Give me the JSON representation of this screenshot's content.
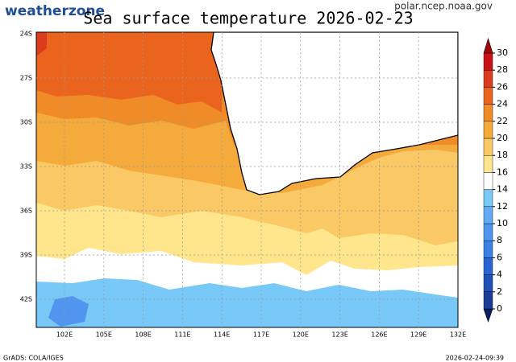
{
  "header": {
    "logo": "weatherzone",
    "title": "Sea surface temperature 2026-02-23",
    "source": "polar.ncep.noaa.gov"
  },
  "map": {
    "lat_labels": [
      "24S",
      "27S",
      "30S",
      "33S",
      "36S",
      "39S",
      "42S"
    ],
    "lon_labels": [
      "102E",
      "105E",
      "108E",
      "111E",
      "114E",
      "117E",
      "120E",
      "123E",
      "126E",
      "129E",
      "132E"
    ]
  },
  "colorbar": {
    "levels": [
      0,
      2,
      4,
      6,
      8,
      10,
      12,
      14,
      16,
      18,
      20,
      22,
      24,
      26,
      28,
      30
    ],
    "colors": [
      "#0a1e64",
      "#1a3c96",
      "#1f50b4",
      "#2864d2",
      "#3c82e6",
      "#5096f0",
      "#64aaf5",
      "#78c8f8",
      "#ffffff",
      "#ffe68c",
      "#fac864",
      "#f5aa3c",
      "#f08c28",
      "#eb641e",
      "#dc3c1e",
      "#c81414",
      "#a00a0a"
    ]
  },
  "footer": {
    "left": "GrADS: COLA/IGES",
    "right": "2026-02-24-09:39"
  }
}
